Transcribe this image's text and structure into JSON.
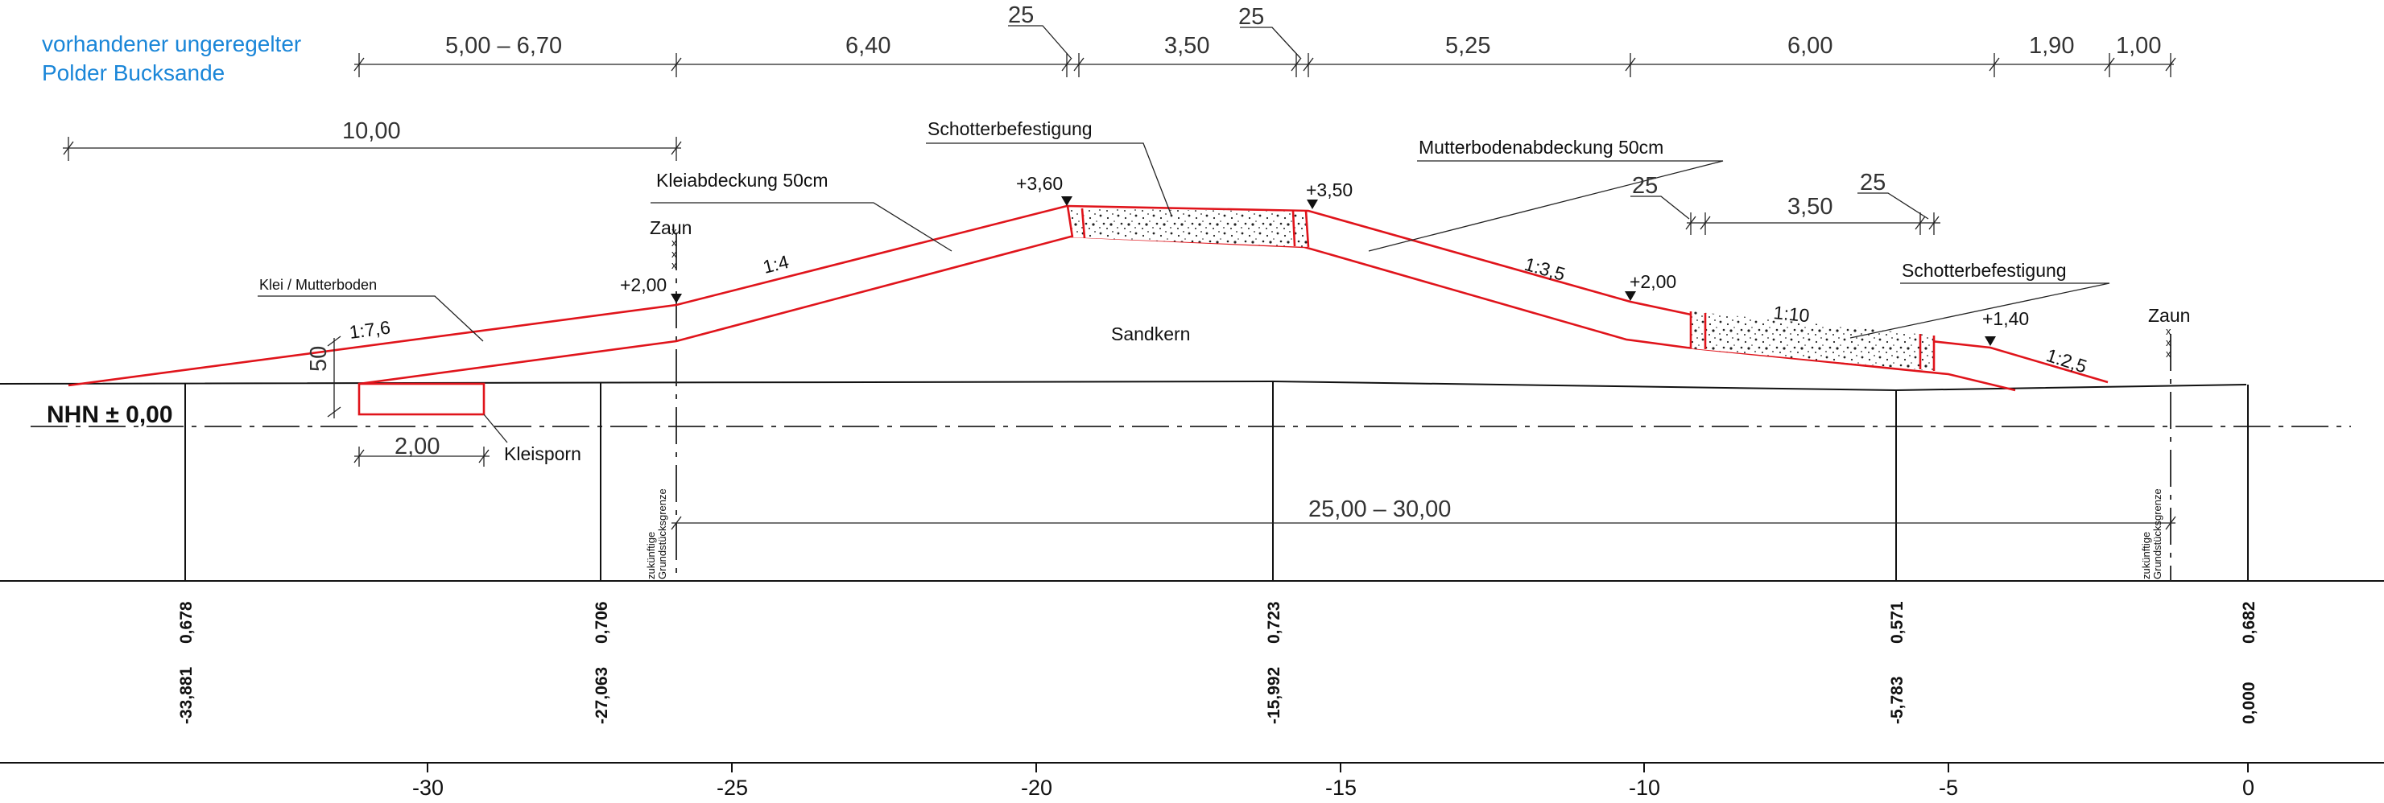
{
  "header": {
    "note_line1": "vorhandener ungeregelter",
    "note_line2": "Polder  Bucksande"
  },
  "labels": {
    "kleiabdeckung": "Kleiabdeckung  50cm",
    "schotter_crest": "Schotterbefestigung",
    "mutterboden": "Mutterbodenabdeckung  50cm",
    "schotter_berm": "Schotterbefestigung",
    "klei_mutterboden": "Klei / Mutterboden",
    "sandkern": "Sandkern",
    "kleisporn": "Kleisporn",
    "nhn": "NHN ± 0,00",
    "zaun_left": "Zaun",
    "zaun_right": "Zaun",
    "grenze_left_1": "zukünftige",
    "grenze_left_2": "Grundstücksgrenze",
    "grenze_right_1": "zukünftige",
    "grenze_right_2": "Grundstücksgrenze"
  },
  "levels": [
    "+3,60",
    "+3,50",
    "+2,00",
    "+2,00",
    "+1,40"
  ],
  "slopes": [
    "1:7,6",
    "1:4",
    "1:3,5",
    "1:10",
    "1:2,5"
  ],
  "dimensions": {
    "top_row": [
      "5,00  –  6,70",
      "6,40",
      "3,50",
      "5,25",
      "6,00",
      "1,90",
      "1,00"
    ],
    "top_25_left": "25",
    "top_25_right": "25",
    "ten": "10,00",
    "berm_25_left": "25",
    "berm_width": "3,50",
    "berm_25_right": "25",
    "kleisporn_depth": "50",
    "kleisporn_width": "2,00",
    "span": "25,00  –  30,00"
  },
  "stations": [
    {
      "station": "-33,881",
      "height": "0,678"
    },
    {
      "station": "-27,063",
      "height": "0,706"
    },
    {
      "station": "-15,992",
      "height": "0,723"
    },
    {
      "station": "-5,783",
      "height": "0,571"
    },
    {
      "station": "0,000",
      "height": "0,682"
    }
  ],
  "axis_ticks": [
    "-30",
    "-25",
    "-20",
    "-15",
    "-10",
    "-5",
    "0"
  ],
  "colors": {
    "section_lines": "#e0141b",
    "note_text": "#1a86d8",
    "structure": "#111111"
  }
}
